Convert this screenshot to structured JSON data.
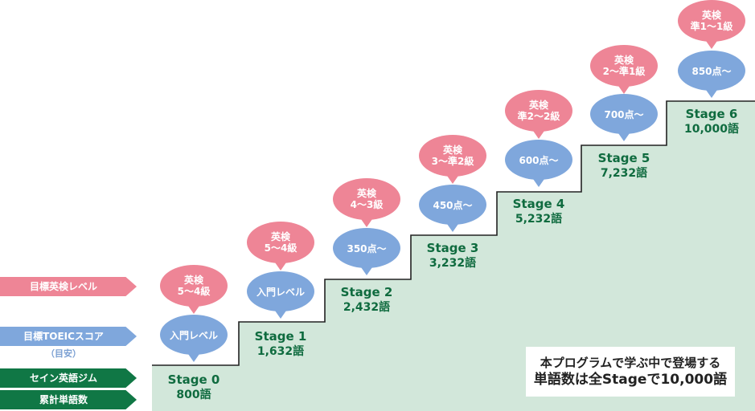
{
  "colors": {
    "pink": "#ee8596",
    "blue": "#7fa7dc",
    "green": "#107745",
    "mint": "#d2e7da",
    "stage_text": "#0f6b3f"
  },
  "legend": {
    "eiken": "目標英検レベル",
    "toeic": "目標TOEICスコア",
    "toeic_sub": "（目安）",
    "gym": "セイン英語ジム",
    "words": "累計単語数"
  },
  "stages": [
    {
      "name": "Stage 0",
      "words": "800語",
      "eiken": [
        "英検",
        "5〜4級"
      ],
      "toeic": "入門レベル"
    },
    {
      "name": "Stage 1",
      "words": "1,632語",
      "eiken": [
        "英検",
        "5〜4級"
      ],
      "toeic": "入門レベル"
    },
    {
      "name": "Stage 2",
      "words": "2,432語",
      "eiken": [
        "英検",
        "4〜3級"
      ],
      "toeic": "350点〜"
    },
    {
      "name": "Stage 3",
      "words": "3,232語",
      "eiken": [
        "英検",
        "3〜準2級"
      ],
      "toeic": "450点〜"
    },
    {
      "name": "Stage 4",
      "words": "5,232語",
      "eiken": [
        "英検",
        "準2〜2級"
      ],
      "toeic": "600点〜"
    },
    {
      "name": "Stage 5",
      "words": "7,232語",
      "eiken": [
        "英検",
        "2〜準1級"
      ],
      "toeic": "700点〜"
    },
    {
      "name": "Stage 6",
      "words": "10,000語",
      "eiken": [
        "英検",
        "準1〜1級"
      ],
      "toeic": "850点〜"
    }
  ],
  "note": {
    "line1": "本プログラムで学ぶ中で登場する",
    "line2": "単語数は全Stageで10,000語"
  }
}
